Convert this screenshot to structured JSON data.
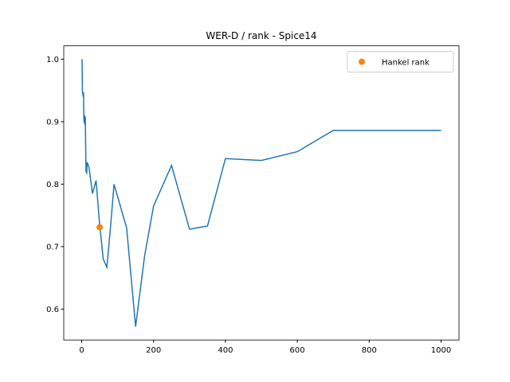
{
  "chart_data": {
    "type": "line",
    "title": "WER-D / rank - Spice14",
    "xlim": [
      -49.95,
      1049.95
    ],
    "ylim": [
      0.5506,
      1.0214
    ],
    "xticks": [
      0,
      200,
      400,
      600,
      800,
      1000
    ],
    "yticks": [
      {
        "value": 0.6,
        "label": "0.6"
      },
      {
        "value": 0.7,
        "label": "0.7"
      },
      {
        "value": 0.8,
        "label": "0.8"
      },
      {
        "value": 0.9,
        "label": "0.9"
      },
      {
        "value": 1.0,
        "label": "1.0"
      }
    ],
    "legend": "upper right",
    "series": [
      {
        "color": "#1f77b4",
        "kind": "line",
        "x": [
          1,
          2,
          3,
          4,
          5,
          6,
          7,
          8,
          9,
          10,
          12,
          14,
          15,
          20,
          30,
          40,
          50,
          60,
          70,
          80,
          90,
          100,
          125,
          150,
          175,
          200,
          250,
          300,
          350,
          400,
          500,
          600,
          700,
          800,
          900,
          1000
        ],
        "values": [
          1.0,
          0.95,
          0.945,
          0.94,
          0.947,
          0.905,
          0.898,
          0.91,
          0.895,
          0.908,
          0.82,
          0.818,
          0.835,
          0.828,
          0.785,
          0.806,
          0.735,
          0.68,
          0.667,
          0.73,
          0.8,
          0.78,
          0.73,
          0.572,
          0.685,
          0.765,
          0.83,
          0.728,
          0.733,
          0.841,
          0.838,
          0.852,
          0.886,
          0.886,
          0.886,
          0.886
        ]
      },
      {
        "name": "Hankel rank",
        "color": "#ff7f0e",
        "kind": "scatter",
        "x": [
          50
        ],
        "values": [
          0.731
        ]
      }
    ]
  }
}
